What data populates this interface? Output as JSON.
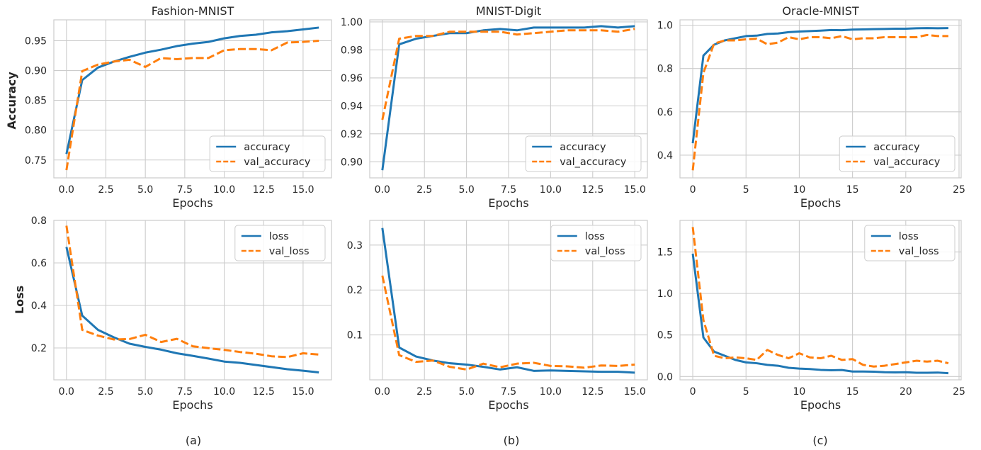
{
  "row_labels": [
    "Accuracy",
    "Loss"
  ],
  "captions": [
    "(a)",
    "(b)",
    "(c)"
  ],
  "colors": {
    "train": "#1f77b4",
    "val": "#ff7f0e",
    "grid": "#cccccc",
    "bg": "#ffffff"
  },
  "chart_data": [
    {
      "type": "line",
      "title": "Fashion-MNIST",
      "xlabel": "Epochs",
      "ylabel": "Accuracy",
      "xlim": [
        -0.8,
        16.8
      ],
      "ylim": [
        0.72,
        0.985
      ],
      "xticks": [
        0.0,
        2.5,
        5.0,
        7.5,
        10.0,
        12.5,
        15.0
      ],
      "xtick_labels": [
        "0.0",
        "2.5",
        "5.0",
        "7.5",
        "10.0",
        "12.5",
        "15.0"
      ],
      "yticks": [
        0.75,
        0.8,
        0.85,
        0.9,
        0.95
      ],
      "ytick_labels": [
        "0.75",
        "0.80",
        "0.85",
        "0.90",
        "0.95"
      ],
      "legend_position": "bottom-right",
      "x": [
        0,
        1,
        2,
        3,
        4,
        5,
        6,
        7,
        8,
        9,
        10,
        11,
        12,
        13,
        14,
        15,
        16
      ],
      "series": [
        {
          "name": "accuracy",
          "style": "solid",
          "values": [
            0.76,
            0.884,
            0.905,
            0.915,
            0.923,
            0.93,
            0.935,
            0.941,
            0.945,
            0.948,
            0.954,
            0.958,
            0.96,
            0.964,
            0.966,
            0.969,
            0.972
          ]
        },
        {
          "name": "val_accuracy",
          "style": "dashed",
          "values": [
            0.733,
            0.899,
            0.91,
            0.915,
            0.918,
            0.906,
            0.921,
            0.919,
            0.921,
            0.921,
            0.934,
            0.936,
            0.936,
            0.934,
            0.947,
            0.948,
            0.95
          ]
        }
      ]
    },
    {
      "type": "line",
      "title": "MNIST-Digit",
      "xlabel": "Epochs",
      "ylabel": "",
      "xlim": [
        -0.75,
        15.75
      ],
      "ylim": [
        0.8885,
        1.0015
      ],
      "xticks": [
        0.0,
        2.5,
        5.0,
        7.5,
        10.0,
        12.5,
        15.0
      ],
      "xtick_labels": [
        "0.0",
        "2.5",
        "5.0",
        "7.5",
        "10.0",
        "12.5",
        "15.0"
      ],
      "yticks": [
        0.9,
        0.92,
        0.94,
        0.96,
        0.98,
        1.0
      ],
      "ytick_labels": [
        "0.90",
        "0.92",
        "0.94",
        "0.96",
        "0.98",
        "1.00"
      ],
      "legend_position": "bottom-right",
      "x": [
        0,
        1,
        2,
        3,
        4,
        5,
        6,
        7,
        8,
        9,
        10,
        11,
        12,
        13,
        14,
        15
      ],
      "series": [
        {
          "name": "accuracy",
          "style": "solid",
          "values": [
            0.894,
            0.984,
            0.988,
            0.99,
            0.992,
            0.992,
            0.994,
            0.995,
            0.994,
            0.996,
            0.996,
            0.996,
            0.996,
            0.997,
            0.996,
            0.997
          ]
        },
        {
          "name": "val_accuracy",
          "style": "dashed",
          "values": [
            0.93,
            0.988,
            0.99,
            0.99,
            0.993,
            0.993,
            0.993,
            0.993,
            0.991,
            0.992,
            0.993,
            0.994,
            0.994,
            0.994,
            0.993,
            0.995
          ]
        }
      ]
    },
    {
      "type": "line",
      "title": "Oracle-MNIST",
      "xlabel": "Epochs",
      "ylabel": "",
      "xlim": [
        -1.2,
        25.2
      ],
      "ylim": [
        0.295,
        1.025
      ],
      "xticks": [
        0,
        5,
        10,
        15,
        20,
        25
      ],
      "xtick_labels": [
        "0",
        "5",
        "10",
        "15",
        "20",
        "25"
      ],
      "yticks": [
        0.4,
        0.6,
        0.8,
        1.0
      ],
      "ytick_labels": [
        "0.4",
        "0.6",
        "0.8",
        "1.0"
      ],
      "legend_position": "bottom-right",
      "x": [
        0,
        1,
        2,
        3,
        4,
        5,
        6,
        7,
        8,
        9,
        10,
        11,
        12,
        13,
        14,
        15,
        16,
        17,
        18,
        19,
        20,
        21,
        22,
        23,
        24
      ],
      "series": [
        {
          "name": "accuracy",
          "style": "solid",
          "values": [
            0.455,
            0.86,
            0.91,
            0.93,
            0.94,
            0.95,
            0.952,
            0.96,
            0.962,
            0.968,
            0.971,
            0.973,
            0.975,
            0.978,
            0.977,
            0.98,
            0.981,
            0.982,
            0.983,
            0.984,
            0.984,
            0.986,
            0.987,
            0.986,
            0.987
          ]
        },
        {
          "name": "val_accuracy",
          "style": "dashed",
          "values": [
            0.33,
            0.78,
            0.915,
            0.93,
            0.93,
            0.935,
            0.938,
            0.912,
            0.92,
            0.945,
            0.935,
            0.945,
            0.945,
            0.94,
            0.95,
            0.935,
            0.94,
            0.94,
            0.945,
            0.945,
            0.945,
            0.945,
            0.955,
            0.95,
            0.95
          ]
        }
      ]
    },
    {
      "type": "line",
      "title": "",
      "xlabel": "Epochs",
      "ylabel": "Loss",
      "xlim": [
        -0.8,
        16.8
      ],
      "ylim": [
        0.05,
        0.8
      ],
      "xticks": [
        0.0,
        2.5,
        5.0,
        7.5,
        10.0,
        12.5,
        15.0
      ],
      "xtick_labels": [
        "0.0",
        "2.5",
        "5.0",
        "7.5",
        "10.0",
        "12.5",
        "15.0"
      ],
      "yticks": [
        0.2,
        0.4,
        0.6,
        0.8
      ],
      "ytick_labels": [
        "0.2",
        "0.4",
        "0.6",
        "0.8"
      ],
      "legend_position": "top-right",
      "x": [
        0,
        1,
        2,
        3,
        4,
        5,
        6,
        7,
        8,
        9,
        10,
        11,
        12,
        13,
        14,
        15,
        16
      ],
      "series": [
        {
          "name": "loss",
          "style": "solid",
          "values": [
            0.675,
            0.352,
            0.285,
            0.25,
            0.22,
            0.205,
            0.192,
            0.175,
            0.163,
            0.15,
            0.136,
            0.13,
            0.12,
            0.11,
            0.1,
            0.093,
            0.085
          ]
        },
        {
          "name": "val_loss",
          "style": "dashed",
          "values": [
            0.775,
            0.285,
            0.258,
            0.24,
            0.242,
            0.262,
            0.228,
            0.243,
            0.208,
            0.199,
            0.191,
            0.181,
            0.173,
            0.161,
            0.157,
            0.175,
            0.169
          ]
        }
      ]
    },
    {
      "type": "line",
      "title": "",
      "xlabel": "Epochs",
      "ylabel": "",
      "xlim": [
        -0.75,
        15.75
      ],
      "ylim": [
        0.0,
        0.355
      ],
      "xticks": [
        0.0,
        2.5,
        5.0,
        7.5,
        10.0,
        12.5,
        15.0
      ],
      "xtick_labels": [
        "0.0",
        "2.5",
        "5.0",
        "7.5",
        "10.0",
        "12.5",
        "15.0"
      ],
      "yticks": [
        0.1,
        0.2,
        0.3
      ],
      "ytick_labels": [
        "0.1",
        "0.2",
        "0.3"
      ],
      "legend_position": "top-right",
      "x": [
        0,
        1,
        2,
        3,
        4,
        5,
        6,
        7,
        8,
        9,
        10,
        11,
        12,
        13,
        14,
        15
      ],
      "series": [
        {
          "name": "loss",
          "style": "solid",
          "values": [
            0.338,
            0.072,
            0.052,
            0.043,
            0.037,
            0.034,
            0.029,
            0.023,
            0.028,
            0.02,
            0.021,
            0.02,
            0.019,
            0.018,
            0.018,
            0.016
          ]
        },
        {
          "name": "val_loss",
          "style": "dashed",
          "values": [
            0.232,
            0.055,
            0.04,
            0.043,
            0.029,
            0.023,
            0.036,
            0.028,
            0.036,
            0.038,
            0.031,
            0.03,
            0.027,
            0.032,
            0.031,
            0.034
          ]
        }
      ]
    },
    {
      "type": "line",
      "title": "",
      "xlabel": "Epochs",
      "ylabel": "",
      "xlim": [
        -1.2,
        25.2
      ],
      "ylim": [
        -0.04,
        1.88
      ],
      "xticks": [
        0,
        5,
        10,
        15,
        20,
        25
      ],
      "xtick_labels": [
        "0",
        "5",
        "10",
        "15",
        "20",
        "25"
      ],
      "yticks": [
        0.0,
        0.5,
        1.0,
        1.5
      ],
      "ytick_labels": [
        "0.0",
        "0.5",
        "1.0",
        "1.5"
      ],
      "legend_position": "top-right",
      "x": [
        0,
        1,
        2,
        3,
        4,
        5,
        6,
        7,
        8,
        9,
        10,
        11,
        12,
        13,
        14,
        15,
        16,
        17,
        18,
        19,
        20,
        21,
        22,
        23,
        24
      ],
      "series": [
        {
          "name": "loss",
          "style": "solid",
          "values": [
            1.48,
            0.47,
            0.3,
            0.25,
            0.2,
            0.17,
            0.16,
            0.14,
            0.13,
            0.105,
            0.095,
            0.09,
            0.08,
            0.075,
            0.078,
            0.06,
            0.06,
            0.058,
            0.052,
            0.05,
            0.052,
            0.045,
            0.045,
            0.048,
            0.04
          ]
        },
        {
          "name": "val_loss",
          "style": "dashed",
          "values": [
            1.8,
            0.68,
            0.25,
            0.22,
            0.23,
            0.22,
            0.2,
            0.32,
            0.26,
            0.22,
            0.28,
            0.23,
            0.22,
            0.25,
            0.2,
            0.21,
            0.14,
            0.12,
            0.13,
            0.15,
            0.17,
            0.19,
            0.18,
            0.19,
            0.16
          ]
        }
      ]
    }
  ]
}
